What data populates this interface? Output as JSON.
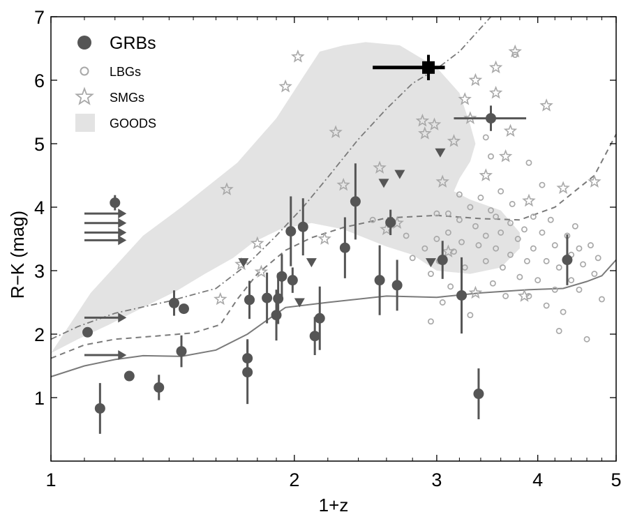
{
  "chart_data": {
    "type": "scatter",
    "xlabel": "1+z",
    "ylabel": "R−K  (mag)",
    "xscale": "log",
    "xlim": [
      1,
      5
    ],
    "ylim": [
      0,
      7
    ],
    "xticks": [
      1,
      2,
      3,
      4,
      5
    ],
    "xtick_labels": [
      "1",
      "2",
      "3",
      "4",
      "5"
    ],
    "yticks": [
      1,
      2,
      3,
      4,
      5,
      6,
      7
    ],
    "ytick_labels": [
      "1",
      "2",
      "3",
      "4",
      "5",
      "6",
      "7"
    ],
    "grid": false,
    "legend_position": "top-left",
    "legend": [
      {
        "label": "GRBs",
        "marker": "filled-circle"
      },
      {
        "label": "LBGs",
        "marker": "open-circle"
      },
      {
        "label": "SMGs",
        "marker": "star"
      },
      {
        "label": "GOODS",
        "marker": "shaded-region"
      }
    ],
    "colors": {
      "grb": "#555555",
      "lbg": "#a8a8a8",
      "smg": "#a8a8a8",
      "goods": "#e3e3e3",
      "highlight": "#000000",
      "curves": "#7a7a7a"
    },
    "series": {
      "goods_region": [
        [
          1.0,
          1.7
        ],
        [
          1.12,
          2.65
        ],
        [
          1.3,
          3.55
        ],
        [
          1.45,
          4.0
        ],
        [
          1.7,
          4.7
        ],
        [
          1.9,
          5.4
        ],
        [
          2.05,
          6.05
        ],
        [
          2.15,
          6.45
        ],
        [
          2.3,
          6.55
        ],
        [
          2.45,
          6.6
        ],
        [
          2.7,
          6.55
        ],
        [
          3.0,
          6.2
        ],
        [
          3.2,
          5.8
        ],
        [
          3.3,
          5.3
        ],
        [
          3.35,
          5.0
        ],
        [
          3.3,
          4.72
        ],
        [
          3.2,
          4.45
        ],
        [
          3.15,
          4.25
        ],
        [
          3.3,
          4.12
        ],
        [
          3.6,
          3.95
        ],
        [
          3.8,
          3.6
        ],
        [
          3.8,
          3.35
        ],
        [
          3.6,
          3.05
        ],
        [
          3.3,
          2.95
        ],
        [
          3.0,
          3.0
        ],
        [
          2.8,
          3.25
        ],
        [
          2.6,
          3.38
        ],
        [
          2.3,
          3.65
        ],
        [
          2.1,
          3.75
        ],
        [
          1.92,
          3.65
        ],
        [
          1.78,
          3.45
        ],
        [
          1.68,
          3.2
        ],
        [
          1.55,
          2.95
        ],
        [
          1.43,
          2.68
        ],
        [
          1.3,
          2.42
        ],
        [
          1.18,
          2.15
        ],
        [
          1.08,
          1.92
        ],
        [
          1.0,
          1.7
        ]
      ],
      "solid_curve": [
        [
          1.0,
          1.33
        ],
        [
          1.1,
          1.5
        ],
        [
          1.2,
          1.6
        ],
        [
          1.3,
          1.66
        ],
        [
          1.45,
          1.65
        ],
        [
          1.6,
          1.75
        ],
        [
          1.75,
          2.0
        ],
        [
          1.85,
          2.22
        ],
        [
          1.95,
          2.42
        ],
        [
          2.2,
          2.5
        ],
        [
          2.6,
          2.6
        ],
        [
          3.0,
          2.58
        ],
        [
          3.4,
          2.65
        ],
        [
          3.9,
          2.7
        ],
        [
          4.3,
          2.72
        ],
        [
          4.6,
          2.83
        ],
        [
          4.8,
          2.92
        ],
        [
          5.0,
          3.17
        ]
      ],
      "dashed_curve": [
        [
          1.0,
          1.62
        ],
        [
          1.1,
          1.83
        ],
        [
          1.2,
          1.92
        ],
        [
          1.35,
          1.97
        ],
        [
          1.5,
          2.02
        ],
        [
          1.62,
          2.15
        ],
        [
          1.7,
          2.55
        ],
        [
          1.8,
          2.95
        ],
        [
          1.95,
          3.32
        ],
        [
          2.1,
          3.52
        ],
        [
          2.3,
          3.68
        ],
        [
          2.6,
          3.83
        ],
        [
          3.0,
          3.87
        ],
        [
          3.4,
          3.82
        ],
        [
          3.8,
          3.8
        ],
        [
          4.2,
          4.0
        ],
        [
          4.7,
          4.5
        ],
        [
          5.0,
          5.15
        ]
      ],
      "dashdot_curve": [
        [
          1.0,
          1.92
        ],
        [
          1.08,
          2.12
        ],
        [
          1.2,
          2.33
        ],
        [
          1.4,
          2.52
        ],
        [
          1.6,
          2.72
        ],
        [
          1.75,
          3.1
        ],
        [
          1.9,
          3.55
        ],
        [
          2.05,
          4.0
        ],
        [
          2.2,
          4.47
        ],
        [
          2.4,
          5.07
        ],
        [
          2.6,
          5.55
        ],
        [
          2.8,
          5.95
        ],
        [
          3.0,
          6.18
        ],
        [
          3.2,
          6.45
        ],
        [
          3.5,
          7.0
        ]
      ],
      "grb_points": [
        [
          1.11,
          2.03,
          0.0
        ],
        [
          1.15,
          0.83,
          0.4
        ],
        [
          1.2,
          4.07,
          0.12
        ],
        [
          1.25,
          1.34,
          0.08
        ],
        [
          1.36,
          1.16,
          0.2
        ],
        [
          1.42,
          2.49,
          0.2
        ],
        [
          1.45,
          1.73,
          0.25
        ],
        [
          1.46,
          2.4,
          0.06
        ],
        [
          1.75,
          1.4,
          0.5
        ],
        [
          1.75,
          1.62,
          0.3
        ],
        [
          1.76,
          2.54,
          0.3
        ],
        [
          1.85,
          2.57,
          0.4
        ],
        [
          1.9,
          2.3,
          0.4
        ],
        [
          1.91,
          2.56,
          0.4
        ],
        [
          1.93,
          2.91,
          0.35
        ],
        [
          1.98,
          3.62,
          0.55
        ],
        [
          1.99,
          2.85,
          0.2
        ],
        [
          2.05,
          3.69,
          0.45
        ],
        [
          2.12,
          1.97,
          0.3
        ],
        [
          2.15,
          2.25,
          0.5
        ],
        [
          2.31,
          3.36,
          0.48
        ],
        [
          2.38,
          4.09,
          0.6
        ],
        [
          2.55,
          2.85,
          0.55
        ],
        [
          2.63,
          3.76,
          0.2
        ],
        [
          2.68,
          2.77,
          0.4
        ],
        [
          3.05,
          3.17,
          0.3
        ],
        [
          3.22,
          2.61,
          0.6
        ],
        [
          3.38,
          1.06,
          0.4
        ],
        [
          3.5,
          5.4,
          0.2
        ],
        [
          4.35,
          3.17,
          0.4
        ]
      ],
      "grb_xerr": [
        [
          3.5,
          5.4,
          3.15,
          3.87
        ]
      ],
      "grb_lower_limit_arrows": [
        3.9,
        3.75,
        3.6,
        3.48,
        2.26,
        1.67
      ],
      "upper_limit_triangles": [
        [
          1.73,
          3.13
        ],
        [
          1.93,
          2.87
        ],
        [
          2.03,
          2.5
        ],
        [
          2.1,
          3.13
        ],
        [
          2.58,
          4.38
        ],
        [
          2.7,
          4.52
        ],
        [
          2.95,
          3.13
        ],
        [
          3.03,
          4.86
        ]
      ],
      "highlight_grb": {
        "x": 2.93,
        "y": 6.2,
        "xerr": [
          2.5,
          3.07
        ],
        "yerr": [
          6.0,
          6.4
        ]
      },
      "lbg_points": [
        [
          2.5,
          3.8
        ],
        [
          2.65,
          3.75
        ],
        [
          2.75,
          3.55
        ],
        [
          2.8,
          3.2
        ],
        [
          2.9,
          3.35
        ],
        [
          2.95,
          2.95
        ],
        [
          3.0,
          3.9
        ],
        [
          3.0,
          3.5
        ],
        [
          3.02,
          3.15
        ],
        [
          3.05,
          2.5
        ],
        [
          3.1,
          3.9
        ],
        [
          3.1,
          3.6
        ],
        [
          3.12,
          2.75
        ],
        [
          3.15,
          3.3
        ],
        [
          3.2,
          4.2
        ],
        [
          3.2,
          3.8
        ],
        [
          3.22,
          3.45
        ],
        [
          3.25,
          3.05
        ],
        [
          3.3,
          4.0
        ],
        [
          3.3,
          2.3
        ],
        [
          3.35,
          3.7
        ],
        [
          3.38,
          3.4
        ],
        [
          3.4,
          4.15
        ],
        [
          3.45,
          3.55
        ],
        [
          3.45,
          3.15
        ],
        [
          3.5,
          4.8
        ],
        [
          3.5,
          3.95
        ],
        [
          3.52,
          2.8
        ],
        [
          3.55,
          3.85
        ],
        [
          3.55,
          3.35
        ],
        [
          3.6,
          4.25
        ],
        [
          3.6,
          3.6
        ],
        [
          3.62,
          3.05
        ],
        [
          3.65,
          2.6
        ],
        [
          3.7,
          3.75
        ],
        [
          3.7,
          3.25
        ],
        [
          3.72,
          4.05
        ],
        [
          3.75,
          6.4
        ],
        [
          3.78,
          3.5
        ],
        [
          3.8,
          2.9
        ],
        [
          3.85,
          3.65
        ],
        [
          3.88,
          3.15
        ],
        [
          3.9,
          2.6
        ],
        [
          3.95,
          3.85
        ],
        [
          3.95,
          3.35
        ],
        [
          4.0,
          2.85
        ],
        [
          4.05,
          4.35
        ],
        [
          4.05,
          3.6
        ],
        [
          4.1,
          3.15
        ],
        [
          4.1,
          2.45
        ],
        [
          4.15,
          3.8
        ],
        [
          4.2,
          3.4
        ],
        [
          4.2,
          2.7
        ],
        [
          4.25,
          3.05
        ],
        [
          4.3,
          2.35
        ],
        [
          4.35,
          3.55
        ],
        [
          4.4,
          3.25
        ],
        [
          4.4,
          2.85
        ],
        [
          4.45,
          3.7
        ],
        [
          4.5,
          3.35
        ],
        [
          4.5,
          2.7
        ],
        [
          4.55,
          3.1
        ],
        [
          4.6,
          1.92
        ],
        [
          4.65,
          3.4
        ],
        [
          4.7,
          2.95
        ],
        [
          4.75,
          3.2
        ],
        [
          4.8,
          2.55
        ],
        [
          4.25,
          2.05
        ],
        [
          3.45,
          5.1
        ],
        [
          3.9,
          4.7
        ],
        [
          2.95,
          2.2
        ]
      ],
      "smg_points": [
        [
          1.65,
          4.28
        ],
        [
          1.72,
          3.1
        ],
        [
          1.8,
          3.43
        ],
        [
          1.95,
          5.9
        ],
        [
          2.02,
          6.37
        ],
        [
          2.25,
          5.18
        ],
        [
          2.3,
          4.35
        ],
        [
          2.55,
          4.62
        ],
        [
          2.68,
          3.75
        ],
        [
          2.88,
          5.36
        ],
        [
          2.9,
          5.16
        ],
        [
          2.98,
          5.3
        ],
        [
          3.05,
          4.4
        ],
        [
          3.15,
          5.04
        ],
        [
          3.25,
          5.7
        ],
        [
          3.35,
          6.0
        ],
        [
          3.45,
          4.5
        ],
        [
          3.55,
          6.2
        ],
        [
          3.55,
          5.8
        ],
        [
          3.65,
          4.8
        ],
        [
          3.7,
          5.2
        ],
        [
          3.75,
          6.45
        ],
        [
          3.9,
          4.1
        ],
        [
          4.1,
          5.6
        ],
        [
          4.3,
          4.3
        ],
        [
          4.7,
          4.4
        ],
        [
          3.1,
          3.3
        ],
        [
          3.35,
          2.65
        ],
        [
          3.85,
          2.6
        ],
        [
          2.18,
          3.5
        ],
        [
          1.62,
          2.55
        ],
        [
          1.82,
          2.98
        ],
        [
          2.6,
          3.65
        ],
        [
          3.3,
          5.4
        ]
      ]
    }
  }
}
